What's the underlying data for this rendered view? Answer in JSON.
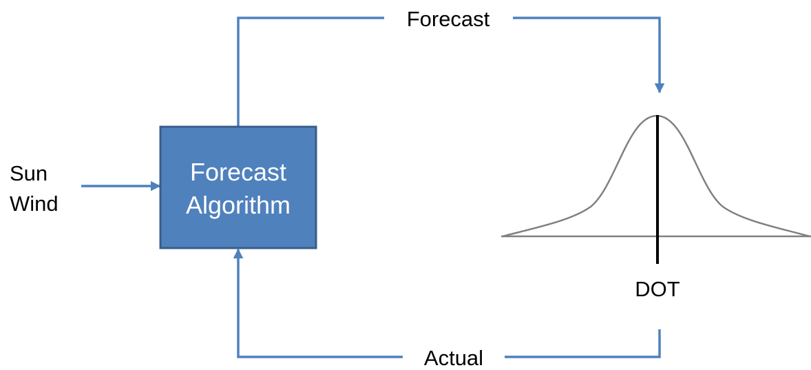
{
  "inputs": {
    "line1": "Sun",
    "line2": "Wind"
  },
  "box": {
    "line1": "Forecast",
    "line2": "Algorithm"
  },
  "top_label": "Forecast",
  "bottom_label": "Actual",
  "dot_label": "DOT",
  "colors": {
    "arrow": "#4f81bd",
    "box_fill": "#4f81bd",
    "box_border": "#385d8a",
    "curve": "#808080",
    "marker": "#000000"
  }
}
